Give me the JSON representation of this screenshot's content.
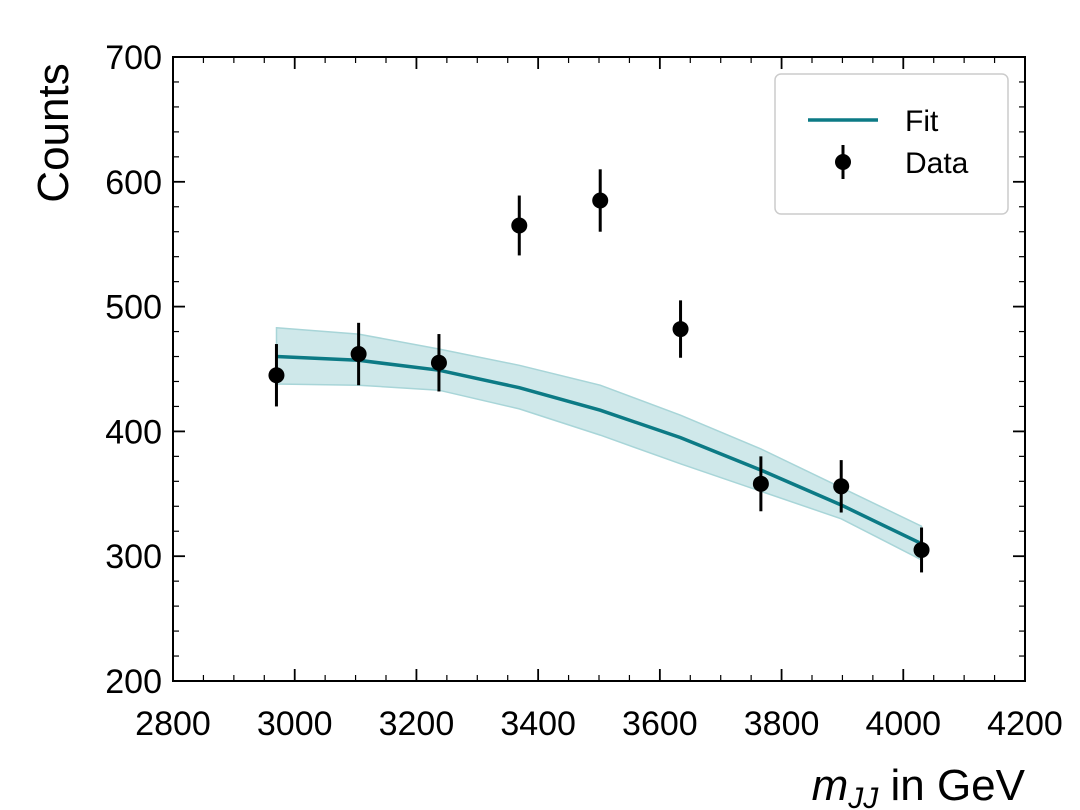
{
  "chart_data": {
    "type": "line",
    "xlabel_main": "m",
    "xlabel_sub": "JJ",
    "xlabel_rest": " in GeV",
    "ylabel": "Counts",
    "xlim": [
      2800,
      4200
    ],
    "ylim": [
      200,
      700
    ],
    "xticks": [
      2800,
      3000,
      3200,
      3400,
      3600,
      3800,
      4000,
      4200
    ],
    "yticks": [
      200,
      300,
      400,
      500,
      600,
      700
    ],
    "xminor_step": 50,
    "yminor_step": 20,
    "legend": {
      "position": "upper-right",
      "fit_label": "Fit",
      "data_label": "Data"
    },
    "fit": {
      "name": "Fit",
      "color": "#0c7a85",
      "band_color": "#a8d5d8",
      "x": [
        2970,
        3105,
        3237,
        3369,
        3502,
        3634,
        3766,
        3898,
        4030
      ],
      "y": [
        460,
        457,
        449,
        435,
        417,
        395,
        369,
        341,
        310
      ],
      "band_low": [
        438,
        437,
        433,
        418,
        397,
        374,
        352,
        330,
        297
      ],
      "band_high": [
        483,
        478,
        466,
        453,
        437,
        413,
        386,
        355,
        324
      ]
    },
    "data": {
      "name": "Data",
      "color": "#000000",
      "x": [
        2970,
        3105,
        3237,
        3369,
        3502,
        3634,
        3766,
        3898,
        4030
      ],
      "y": [
        445,
        462,
        455,
        565,
        585,
        482,
        358,
        356,
        305
      ],
      "yerr": [
        25,
        25,
        23,
        24,
        25,
        23,
        22,
        21,
        18
      ]
    }
  }
}
